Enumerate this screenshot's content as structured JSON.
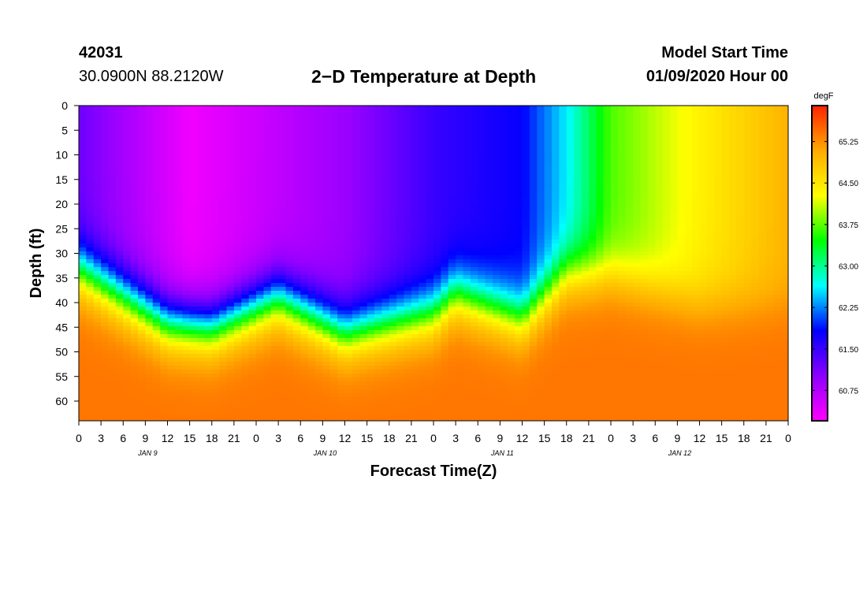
{
  "header": {
    "station_id": "42031",
    "location": "30.0900N 88.2120W",
    "title": "2−D Temperature at Depth",
    "model_start_label": "Model Start Time",
    "model_start_value": "01/09/2020 Hour 00"
  },
  "chart_data": {
    "type": "heatmap",
    "title": "2−D Temperature at Depth",
    "xlabel": "Forecast Time(Z)",
    "ylabel": "Depth (ft)",
    "x_range_hours": [
      0,
      96
    ],
    "x_tick_labels": [
      "0",
      "3",
      "6",
      "9",
      "12",
      "15",
      "18",
      "21",
      "0",
      "3",
      "6",
      "9",
      "12",
      "15",
      "18",
      "21",
      "0",
      "3",
      "6",
      "9",
      "12",
      "15",
      "18",
      "21",
      "0",
      "3",
      "6",
      "9",
      "12",
      "15",
      "18",
      "21",
      "0"
    ],
    "day_labels": [
      "JAN 9",
      "JAN 10",
      "JAN 11",
      "JAN 12"
    ],
    "y_range": [
      0,
      64
    ],
    "y_ticks": [
      0,
      5,
      10,
      15,
      20,
      25,
      30,
      35,
      40,
      45,
      50,
      55,
      60
    ],
    "colorbar": {
      "unit": "degF",
      "range": [
        60.2,
        65.9
      ],
      "tick_labels": [
        "60.75",
        "61.50",
        "62.25",
        "63.00",
        "63.75",
        "64.50",
        "65.25"
      ],
      "colors": [
        "#ff00ff",
        "#8c00ff",
        "#0000ff",
        "#00ffff",
        "#00ff00",
        "#ffff00",
        "#ffaa00",
        "#ff2200"
      ]
    },
    "surface_layer_temp_by_hour": [
      {
        "hour": 0,
        "temp": 61.2
      },
      {
        "hour": 15,
        "temp": 60.3
      },
      {
        "hour": 36,
        "temp": 60.9
      },
      {
        "hour": 48,
        "temp": 61.5
      },
      {
        "hour": 60,
        "temp": 61.8
      },
      {
        "hour": 66,
        "temp": 62.6
      },
      {
        "hour": 72,
        "temp": 63.7
      },
      {
        "hour": 84,
        "temp": 64.4
      },
      {
        "hour": 96,
        "temp": 65.0
      }
    ],
    "mixed_layer_depth_ft_by_hour": [
      {
        "hour": 0,
        "depth": 33
      },
      {
        "hour": 12,
        "depth": 44
      },
      {
        "hour": 18,
        "depth": 45
      },
      {
        "hour": 27,
        "depth": 39
      },
      {
        "hour": 36,
        "depth": 46
      },
      {
        "hour": 48,
        "depth": 42
      },
      {
        "hour": 51,
        "depth": 38
      },
      {
        "hour": 60,
        "depth": 43
      },
      {
        "hour": 66,
        "depth": 34
      },
      {
        "hour": 72,
        "depth": 34
      },
      {
        "hour": 84,
        "depth": 40
      },
      {
        "hour": 96,
        "depth": 40
      }
    ],
    "bottom_layer_temp": 65.4
  }
}
